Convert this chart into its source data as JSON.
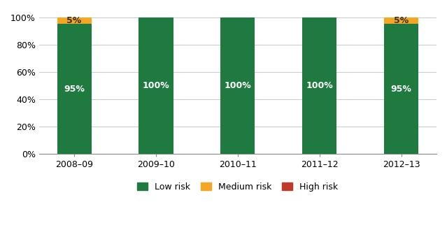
{
  "categories": [
    "2008–09",
    "2009–10",
    "2010–11",
    "2011–12",
    "2012–13"
  ],
  "low_risk": [
    95,
    100,
    100,
    100,
    95
  ],
  "medium_risk": [
    5,
    0,
    0,
    0,
    5
  ],
  "high_risk": [
    0,
    0,
    0,
    0,
    0
  ],
  "low_risk_color": "#1e7a3e",
  "medium_risk_color": "#f5a623",
  "high_risk_color": "#c0392b",
  "bar_width": 0.42,
  "ylim": [
    0,
    105
  ],
  "ytick_labels": [
    "0%",
    "20%",
    "40%",
    "60%",
    "80%",
    "100%"
  ],
  "ytick_values": [
    0,
    20,
    40,
    60,
    80,
    100
  ],
  "label_low_color": "#ffffff",
  "label_med_color": "#333333",
  "label_fontsize": 9,
  "legend_labels": [
    "Low risk",
    "Medium risk",
    "High risk"
  ],
  "background_color": "#ffffff",
  "grid_color": "#cccccc"
}
